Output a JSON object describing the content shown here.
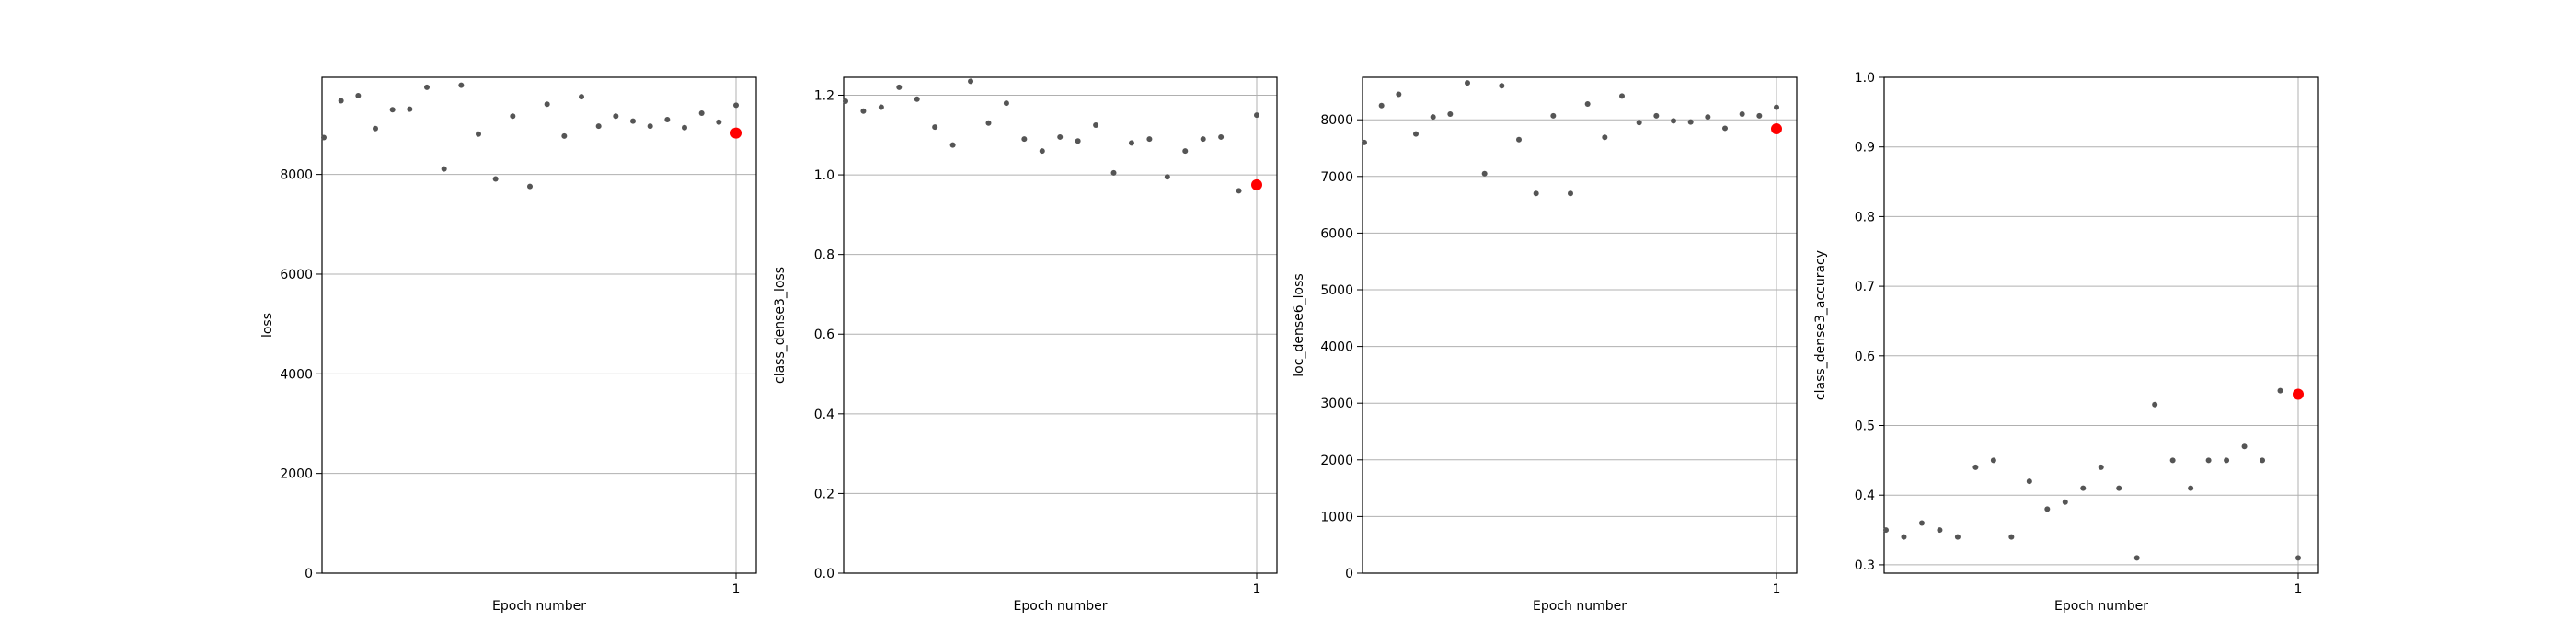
{
  "chart_data": [
    {
      "type": "scatter",
      "xlabel": "Epoch number",
      "ylabel": "loss",
      "x_ticks": [
        "1"
      ],
      "y_ticks": [
        0,
        2000,
        4000,
        6000,
        8000
      ],
      "ylim": [
        0,
        9950
      ],
      "grid": true,
      "series": [
        {
          "color": "#555555",
          "values": [
            8740,
            9480,
            9580,
            8920,
            9300,
            9310,
            9750,
            8110,
            9790,
            8810,
            7910,
            9170,
            7760,
            9410,
            8770,
            9560,
            8970,
            9170,
            9070,
            8970,
            9100,
            8940,
            9230,
            9050,
            9390
          ]
        },
        {
          "color": "#ff0000",
          "values": [
            8830
          ]
        }
      ]
    },
    {
      "type": "scatter",
      "xlabel": "Epoch number",
      "ylabel": "class_dense3_loss",
      "x_ticks": [
        "1"
      ],
      "y_ticks": [
        0.0,
        0.2,
        0.4,
        0.6,
        0.8,
        1.0,
        1.2
      ],
      "ylim": [
        0,
        1.245
      ],
      "grid": true,
      "series": [
        {
          "color": "#555555",
          "values": [
            1.185,
            1.16,
            1.17,
            1.22,
            1.19,
            1.12,
            1.075,
            1.235,
            1.13,
            1.18,
            1.09,
            1.06,
            1.095,
            1.085,
            1.125,
            1.005,
            1.08,
            1.09,
            0.995,
            1.06,
            1.09,
            1.095,
            0.96,
            1.15
          ]
        },
        {
          "color": "#ff0000",
          "values": [
            0.975
          ]
        }
      ]
    },
    {
      "type": "scatter",
      "xlabel": "Epoch number",
      "ylabel": "loc_dense6_loss",
      "x_ticks": [
        "1"
      ],
      "y_ticks": [
        0,
        1000,
        2000,
        3000,
        4000,
        5000,
        6000,
        7000,
        8000
      ],
      "ylim": [
        0,
        8750
      ],
      "grid": true,
      "series": [
        {
          "color": "#555555",
          "values": [
            7600,
            8250,
            8450,
            7750,
            8050,
            8100,
            8650,
            7050,
            8600,
            7650,
            6700,
            8070,
            6700,
            8280,
            7690,
            8420,
            7950,
            8070,
            7980,
            7960,
            8050,
            7850,
            8100,
            8070,
            8220
          ]
        },
        {
          "color": "#ff0000",
          "values": [
            7840
          ]
        }
      ]
    },
    {
      "type": "scatter",
      "xlabel": "Epoch number",
      "ylabel": "class_dense3_accuracy",
      "x_ticks": [
        "1"
      ],
      "y_ticks": [
        0.3,
        0.4,
        0.5,
        0.6,
        0.7,
        0.8,
        0.9,
        1.0
      ],
      "ylim": [
        0.288,
        1.0
      ],
      "grid": true,
      "series": [
        {
          "color": "#555555",
          "values": [
            0.35,
            0.34,
            0.36,
            0.35,
            0.34,
            0.44,
            0.45,
            0.34,
            0.42,
            0.38,
            0.39,
            0.41,
            0.44,
            0.41,
            0.31,
            0.53,
            0.45,
            0.41,
            0.45,
            0.45,
            0.47,
            0.45,
            0.55,
            0.31
          ]
        },
        {
          "color": "#ff0000",
          "values": [
            0.545
          ]
        }
      ]
    }
  ]
}
